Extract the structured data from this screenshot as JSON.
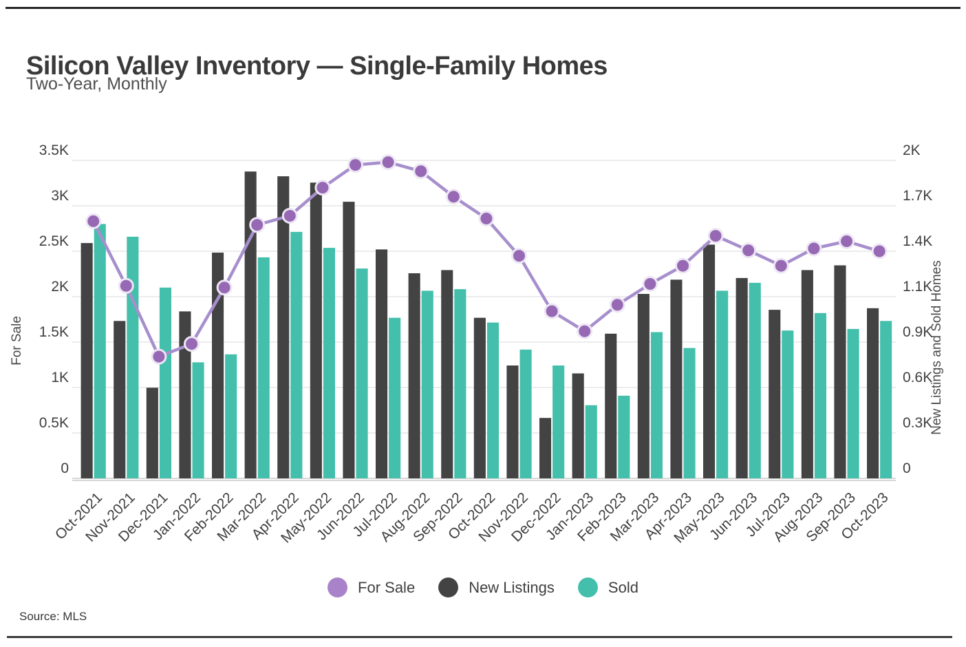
{
  "page": {
    "title": "Silicon Valley Inventory — Single-Family Homes",
    "subtitle": "Two-Year, Monthly",
    "source": "Source: MLS"
  },
  "legend": [
    {
      "label": "For Sale",
      "color": "#A983C9"
    },
    {
      "label": "New Listings",
      "color": "#434343"
    },
    {
      "label": "Sold",
      "color": "#43BFAC"
    }
  ],
  "colors": {
    "new_listings_bar": "#434343",
    "sold_bar": "#43BFAC",
    "for_sale_line": "#A78FCD",
    "for_sale_marker": "#9769B5",
    "marker_ring": "#EDE7F4",
    "gridline": "#e6e6e6",
    "baseline": "#d7d7d7",
    "axis_text": "#3f3f3f",
    "axis_title_text": "#4a4a4a"
  },
  "chart_data": {
    "type": "bar",
    "subtype": "grouped-bars-with-line-overlay",
    "title": "Silicon Valley Inventory — Single-Family Homes",
    "subtitle": "Two-Year, Monthly",
    "grid": true,
    "legend_position": "bottom",
    "categories": [
      "Oct-2021",
      "Nov-2021",
      "Dec-2021",
      "Jan-2022",
      "Feb-2022",
      "Mar-2022",
      "Apr-2022",
      "May-2022",
      "Jun-2022",
      "Jul-2022",
      "Aug-2022",
      "Sep-2022",
      "Oct-2022",
      "Nov-2022",
      "Dec-2022",
      "Jan-2023",
      "Feb-2023",
      "Mar-2023",
      "Apr-2023",
      "May-2023",
      "Jun-2023",
      "Jul-2023",
      "Aug-2023",
      "Sep-2023",
      "Oct-2023"
    ],
    "series": [
      {
        "name": "For Sale",
        "type": "line",
        "axis": "left",
        "values": [
          2830,
          2120,
          1340,
          1480,
          2100,
          2790,
          2890,
          3200,
          3450,
          3480,
          3380,
          3100,
          2860,
          2450,
          1840,
          1620,
          1910,
          2140,
          2340,
          2670,
          2510,
          2340,
          2530,
          2610,
          2500
        ]
      },
      {
        "name": "New Listings",
        "type": "bar",
        "axis": "right",
        "values": [
          1480,
          990,
          570,
          1050,
          1420,
          1930,
          1900,
          1860,
          1740,
          1440,
          1290,
          1310,
          1010,
          710,
          380,
          660,
          910,
          1160,
          1250,
          1470,
          1260,
          1060,
          1310,
          1340,
          1070
        ]
      },
      {
        "name": "Sold",
        "type": "bar",
        "axis": "right",
        "values": [
          1600,
          1520,
          1200,
          730,
          780,
          1390,
          1550,
          1450,
          1320,
          1010,
          1180,
          1190,
          980,
          810,
          710,
          460,
          520,
          920,
          820,
          1180,
          1230,
          930,
          1040,
          940,
          990
        ]
      }
    ],
    "left_axis": {
      "label": "For Sale",
      "min": 0,
      "max": 3500,
      "tick_values": [
        3500,
        3000,
        2500,
        2000,
        1500,
        1000,
        500,
        0
      ],
      "tick_labels": [
        "3.5K",
        "3K",
        "2.5K",
        "2K",
        "1.5K",
        "1K",
        "0.5K",
        "0"
      ]
    },
    "right_axis": {
      "label": "New Listings and Sold Homes",
      "min": 0,
      "max": 2000,
      "tick_labels": [
        "2K",
        "1.7K",
        "1.4K",
        "1.1K",
        "0.9K",
        "0.6K",
        "0.3K",
        "0"
      ]
    }
  }
}
